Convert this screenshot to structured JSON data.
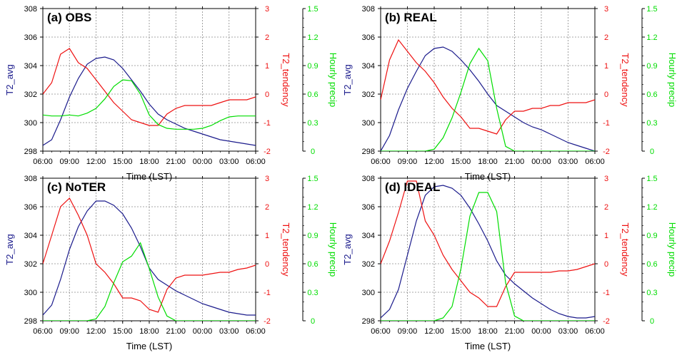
{
  "chart_data": [
    {
      "type": "line",
      "title": "(a) OBS",
      "x": [
        "06:00",
        "07:00",
        "08:00",
        "09:00",
        "10:00",
        "11:00",
        "12:00",
        "13:00",
        "14:00",
        "15:00",
        "16:00",
        "17:00",
        "18:00",
        "19:00",
        "20:00",
        "21:00",
        "22:00",
        "23:00",
        "00:00",
        "01:00",
        "02:00",
        "03:00",
        "04:00",
        "05:00",
        "06:00"
      ],
      "xticks": [
        "06:00",
        "09:00",
        "12:00",
        "15:00",
        "18:00",
        "21:00",
        "00:00",
        "03:00",
        "06:00"
      ],
      "axes": {
        "left": {
          "label": "T2_avg",
          "ylim": [
            298,
            308
          ],
          "ticks": [
            "298",
            "300",
            "302",
            "304",
            "306",
            "308"
          ],
          "color": "#1b1b8c"
        },
        "right1": {
          "label": "T2_tendency",
          "ylim": [
            -2,
            3
          ],
          "ticks": [
            "-2",
            "-1",
            "0",
            "1",
            "2",
            "3"
          ],
          "color": "#ee1111"
        },
        "right2": {
          "label": "Hourly precip",
          "ylim": [
            0,
            1.5
          ],
          "ticks": [
            "0",
            "0.3",
            "0.6",
            "0.9",
            "1.2",
            "1.5"
          ],
          "color": "#00dd00"
        }
      },
      "series": [
        {
          "axis": "left",
          "color": "#1b1b8c",
          "values": [
            298.4,
            298.8,
            300.2,
            301.8,
            303.1,
            304.1,
            304.5,
            304.6,
            304.4,
            303.8,
            303.0,
            302.2,
            301.3,
            300.6,
            300.2,
            299.9,
            299.6,
            299.4,
            299.2,
            299.0,
            298.8,
            298.7,
            298.6,
            298.5,
            298.4
          ]
        },
        {
          "axis": "right1",
          "color": "#ee1111",
          "values": [
            0.0,
            0.4,
            1.4,
            1.6,
            1.1,
            0.9,
            0.5,
            0.1,
            -0.3,
            -0.6,
            -0.9,
            -1.0,
            -1.1,
            -1.1,
            -0.7,
            -0.5,
            -0.4,
            -0.4,
            -0.4,
            -0.4,
            -0.3,
            -0.2,
            -0.2,
            -0.2,
            -0.1
          ]
        },
        {
          "axis": "right2",
          "color": "#00dd00",
          "values": [
            0.38,
            0.37,
            0.37,
            0.38,
            0.37,
            0.4,
            0.45,
            0.55,
            0.68,
            0.75,
            0.74,
            0.6,
            0.38,
            0.28,
            0.24,
            0.23,
            0.23,
            0.23,
            0.24,
            0.27,
            0.32,
            0.36,
            0.37,
            0.37,
            0.37
          ]
        }
      ]
    },
    {
      "type": "line",
      "title": "(b) REAL",
      "x": [
        "06:00",
        "07:00",
        "08:00",
        "09:00",
        "10:00",
        "11:00",
        "12:00",
        "13:00",
        "14:00",
        "15:00",
        "16:00",
        "17:00",
        "18:00",
        "19:00",
        "20:00",
        "21:00",
        "22:00",
        "23:00",
        "00:00",
        "01:00",
        "02:00",
        "03:00",
        "04:00",
        "05:00",
        "06:00"
      ],
      "xticks": [
        "06:00",
        "09:00",
        "12:00",
        "15:00",
        "18:00",
        "21:00",
        "00:00",
        "03:00",
        "06:00"
      ],
      "axes": {
        "left": {
          "label": "T2_avg",
          "ylim": [
            298,
            308
          ],
          "ticks": [
            "298",
            "300",
            "302",
            "304",
            "306",
            "308"
          ],
          "color": "#1b1b8c"
        },
        "right1": {
          "label": "T2_tendency",
          "ylim": [
            -2,
            3
          ],
          "ticks": [
            "-2",
            "-1",
            "0",
            "1",
            "2",
            "3"
          ],
          "color": "#ee1111"
        },
        "right2": {
          "label": "Hourly precip",
          "ylim": [
            0,
            1.5
          ],
          "ticks": [
            "0",
            "0.3",
            "0.6",
            "0.9",
            "1.2",
            "1.5"
          ],
          "color": "#00dd00"
        }
      },
      "series": [
        {
          "axis": "left",
          "color": "#1b1b8c",
          "values": [
            298.0,
            299.1,
            300.9,
            302.4,
            303.6,
            304.7,
            305.2,
            305.3,
            305.0,
            304.4,
            303.7,
            302.9,
            302.0,
            301.2,
            300.8,
            300.4,
            300.0,
            299.7,
            299.5,
            299.2,
            298.9,
            298.6,
            298.4,
            298.2,
            298.0
          ]
        },
        {
          "axis": "right1",
          "color": "#ee1111",
          "values": [
            -0.2,
            1.2,
            1.9,
            1.5,
            1.1,
            0.8,
            0.4,
            -0.1,
            -0.5,
            -0.8,
            -1.2,
            -1.2,
            -1.3,
            -1.4,
            -0.9,
            -0.6,
            -0.6,
            -0.5,
            -0.5,
            -0.4,
            -0.4,
            -0.3,
            -0.3,
            -0.3,
            -0.2
          ]
        },
        {
          "axis": "right2",
          "color": "#00dd00",
          "values": [
            0,
            0,
            0,
            0,
            0,
            0,
            0.02,
            0.14,
            0.35,
            0.62,
            0.92,
            1.08,
            0.95,
            0.45,
            0.05,
            0,
            0,
            0,
            0,
            0,
            0,
            0,
            0,
            0,
            0
          ]
        }
      ]
    },
    {
      "type": "line",
      "title": "(c) NoTER",
      "x": [
        "06:00",
        "07:00",
        "08:00",
        "09:00",
        "10:00",
        "11:00",
        "12:00",
        "13:00",
        "14:00",
        "15:00",
        "16:00",
        "17:00",
        "18:00",
        "19:00",
        "20:00",
        "21:00",
        "22:00",
        "23:00",
        "00:00",
        "01:00",
        "02:00",
        "03:00",
        "04:00",
        "05:00",
        "06:00"
      ],
      "xticks": [
        "06:00",
        "09:00",
        "12:00",
        "15:00",
        "18:00",
        "21:00",
        "00:00",
        "03:00",
        "06:00"
      ],
      "axes": {
        "left": {
          "label": "T2_avg",
          "ylim": [
            298,
            308
          ],
          "ticks": [
            "298",
            "300",
            "302",
            "304",
            "306",
            "308"
          ],
          "color": "#1b1b8c"
        },
        "right1": {
          "label": "T2_tendency",
          "ylim": [
            -2,
            3
          ],
          "ticks": [
            "-2",
            "-1",
            "0",
            "1",
            "2",
            "3"
          ],
          "color": "#ee1111"
        },
        "right2": {
          "label": "Hourly precip",
          "ylim": [
            0,
            1.5
          ],
          "ticks": [
            "0",
            "0.3",
            "0.6",
            "0.9",
            "1.2",
            "1.5"
          ],
          "color": "#00dd00"
        }
      },
      "series": [
        {
          "axis": "left",
          "color": "#1b1b8c",
          "values": [
            298.4,
            299.1,
            300.9,
            303.0,
            304.6,
            305.7,
            306.4,
            306.4,
            306.1,
            305.5,
            304.5,
            303.2,
            301.7,
            300.9,
            300.5,
            300.1,
            299.8,
            299.5,
            299.2,
            299.0,
            298.8,
            298.6,
            298.5,
            298.4,
            298.4
          ]
        },
        {
          "axis": "right1",
          "color": "#ee1111",
          "values": [
            0,
            1.0,
            2.0,
            2.3,
            1.7,
            1.0,
            0,
            -0.3,
            -0.7,
            -1.2,
            -1.2,
            -1.3,
            -1.6,
            -1.7,
            -0.9,
            -0.5,
            -0.4,
            -0.4,
            -0.4,
            -0.35,
            -0.3,
            -0.3,
            -0.2,
            -0.15,
            -0.05
          ]
        },
        {
          "axis": "right2",
          "color": "#00dd00",
          "values": [
            0,
            0,
            0,
            0,
            0,
            0,
            0.02,
            0.15,
            0.4,
            0.62,
            0.68,
            0.82,
            0.55,
            0.25,
            0.05,
            0,
            0,
            0,
            0,
            0,
            0,
            0,
            0,
            0,
            0
          ]
        }
      ]
    },
    {
      "type": "line",
      "title": "(d) IDEAL",
      "x": [
        "06:00",
        "07:00",
        "08:00",
        "09:00",
        "10:00",
        "11:00",
        "12:00",
        "13:00",
        "14:00",
        "15:00",
        "16:00",
        "17:00",
        "18:00",
        "19:00",
        "20:00",
        "21:00",
        "22:00",
        "23:00",
        "00:00",
        "01:00",
        "02:00",
        "03:00",
        "04:00",
        "05:00",
        "06:00"
      ],
      "xticks": [
        "06:00",
        "09:00",
        "12:00",
        "15:00",
        "18:00",
        "21:00",
        "00:00",
        "03:00",
        "06:00"
      ],
      "axes": {
        "left": {
          "label": "T2_avg",
          "ylim": [
            298,
            308
          ],
          "ticks": [
            "298",
            "300",
            "302",
            "304",
            "306",
            "308"
          ],
          "color": "#1b1b8c"
        },
        "right1": {
          "label": "T2_tendency",
          "ylim": [
            -2,
            3
          ],
          "ticks": [
            "-2",
            "-1",
            "0",
            "1",
            "2",
            "3"
          ],
          "color": "#ee1111"
        },
        "right2": {
          "label": "Hourly precip",
          "ylim": [
            0,
            1.5
          ],
          "ticks": [
            "0",
            "0.3",
            "0.6",
            "0.9",
            "1.2",
            "1.5"
          ],
          "color": "#00dd00"
        }
      },
      "series": [
        {
          "axis": "left",
          "color": "#1b1b8c",
          "values": [
            298.2,
            298.8,
            300.2,
            302.6,
            305.0,
            306.8,
            307.4,
            307.5,
            307.3,
            306.8,
            305.9,
            304.8,
            303.6,
            302.2,
            301.2,
            300.6,
            300.1,
            299.6,
            299.2,
            298.8,
            298.5,
            298.3,
            298.2,
            298.2,
            298.3
          ]
        },
        {
          "axis": "right1",
          "color": "#ee1111",
          "values": [
            0,
            0.8,
            1.8,
            2.9,
            2.9,
            1.5,
            1.0,
            0.3,
            -0.2,
            -0.6,
            -1.0,
            -1.2,
            -1.5,
            -1.5,
            -0.8,
            -0.3,
            -0.3,
            -0.3,
            -0.3,
            -0.3,
            -0.25,
            -0.25,
            -0.2,
            -0.1,
            0
          ]
        },
        {
          "axis": "right2",
          "color": "#00dd00",
          "values": [
            0,
            0,
            0,
            0,
            0,
            0,
            0,
            0.03,
            0.15,
            0.55,
            1.1,
            1.35,
            1.35,
            1.15,
            0.4,
            0.05,
            0,
            0,
            0,
            0,
            0,
            0,
            0,
            0,
            0
          ]
        }
      ]
    }
  ],
  "xlabel": "Time (LST)"
}
